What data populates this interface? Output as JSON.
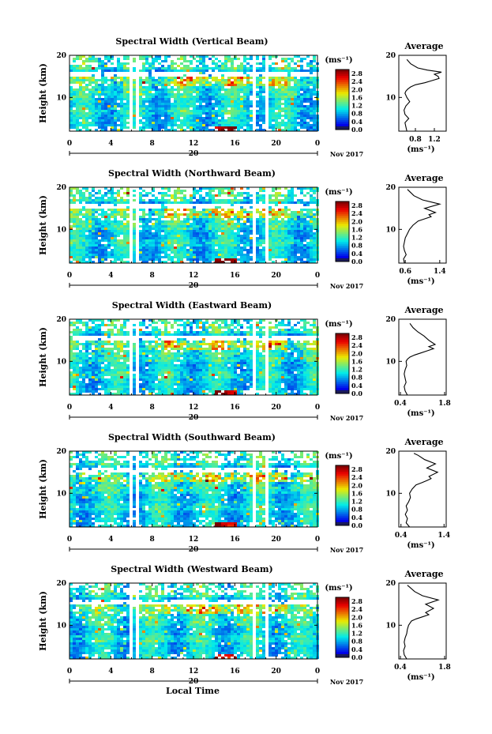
{
  "figure": {
    "xlabel": "Local Time",
    "date_label": "Nov 2017",
    "day_label": "20",
    "unit_label": "(ms⁻¹)",
    "avg_title": "Average",
    "avg_xlabel": "(ms⁻¹)"
  },
  "chart_data": [
    {
      "type": "heatmap",
      "title": "Spectral Width (Vertical Beam)",
      "xlabel": "Local Time",
      "ylabel": "Height (km)",
      "xlim": [
        0,
        24
      ],
      "ylim": [
        2,
        20
      ],
      "x_ticks": [
        "0",
        "4",
        "8",
        "12",
        "16",
        "20",
        "0"
      ],
      "y_ticks": [
        "10",
        "20"
      ],
      "colorbar": {
        "label": "(ms⁻¹)",
        "range": [
          0,
          3.0
        ],
        "ticks": [
          "0.0",
          "0.4",
          "0.8",
          "1.2",
          "1.6",
          "2.0",
          "2.4",
          "2.8"
        ]
      },
      "data_gaps_hours": [
        [
          5.8,
          6.0
        ],
        [
          6.3,
          6.6
        ],
        [
          17.6,
          17.8
        ],
        [
          18.8,
          19.2
        ],
        [
          20.5,
          20.7
        ]
      ],
      "colors": {
        "low": "#1d3fc8",
        "high": "#d81a1a"
      }
    },
    {
      "type": "line",
      "title": "Average",
      "xlabel": "(ms⁻¹)",
      "ylabel": "Height (km)",
      "xlim": [
        0.45,
        1.45
      ],
      "ylim": [
        2,
        20
      ],
      "x_ticks": [
        "0.8",
        "1.2"
      ],
      "y_ticks": [
        "10",
        "20"
      ],
      "x": [
        0.62,
        0.6,
        0.58,
        0.66,
        0.58,
        0.56,
        0.6,
        0.68,
        0.62,
        0.58,
        0.6,
        0.64,
        0.7,
        0.8,
        1.0,
        1.15,
        1.3,
        1.28,
        1.2,
        1.35,
        1.05,
        0.85,
        0.7,
        0.62
      ],
      "y": [
        2,
        3,
        4,
        5,
        6,
        7,
        8,
        9,
        10,
        11,
        11.5,
        12,
        12.5,
        13,
        13.5,
        14,
        14.5,
        15,
        15.5,
        16,
        16.5,
        17,
        18,
        19
      ]
    },
    {
      "type": "heatmap",
      "title": "Spectral Width (Northward Beam)",
      "xlabel": "Local Time",
      "ylabel": "Height (km)",
      "xlim": [
        0,
        24
      ],
      "ylim": [
        2,
        20
      ],
      "x_ticks": [
        "0",
        "4",
        "8",
        "12",
        "16",
        "20",
        "0"
      ],
      "y_ticks": [
        "10",
        "20"
      ],
      "colorbar": {
        "label": "(ms⁻¹)",
        "range": [
          0,
          3.0
        ],
        "ticks": [
          "0.0",
          "0.4",
          "0.8",
          "1.2",
          "1.6",
          "2.0",
          "2.4",
          "2.8"
        ]
      },
      "data_gaps_hours": [
        [
          5.8,
          6.0
        ],
        [
          6.3,
          6.6
        ],
        [
          17.6,
          17.8
        ],
        [
          18.8,
          19.2
        ],
        [
          20.5,
          20.7
        ]
      ],
      "colors": {
        "low": "#1d3fc8",
        "high": "#d81a1a"
      }
    },
    {
      "type": "line",
      "title": "Average",
      "xlabel": "(ms⁻¹)",
      "ylabel": "Height (km)",
      "xlim": [
        0.45,
        1.55
      ],
      "ylim": [
        2,
        20
      ],
      "x_ticks": [
        "0.6",
        "1.4"
      ],
      "y_ticks": [
        "10",
        "20"
      ],
      "x": [
        0.58,
        0.56,
        0.62,
        0.58,
        0.56,
        0.58,
        0.6,
        0.65,
        0.7,
        0.78,
        0.9,
        1.05,
        1.2,
        1.15,
        1.3,
        1.05,
        1.4,
        1.0,
        0.8,
        0.7,
        0.65
      ],
      "y": [
        2,
        3,
        4,
        5,
        6,
        7,
        8,
        9,
        10,
        11,
        12,
        12.5,
        13,
        13.5,
        14,
        15,
        16,
        17,
        18,
        19,
        19.5
      ]
    },
    {
      "type": "heatmap",
      "title": "Spectral Width (Eastward Beam)",
      "xlabel": "Local Time",
      "ylabel": "Height (km)",
      "xlim": [
        0,
        24
      ],
      "ylim": [
        2,
        20
      ],
      "x_ticks": [
        "0",
        "4",
        "8",
        "12",
        "16",
        "20",
        "0"
      ],
      "y_ticks": [
        "10",
        "20"
      ],
      "colorbar": {
        "label": "(ms⁻¹)",
        "range": [
          0,
          3.0
        ],
        "ticks": [
          "0.0",
          "0.4",
          "0.8",
          "1.2",
          "1.6",
          "2.0",
          "2.4",
          "2.8"
        ]
      },
      "data_gaps_hours": [
        [
          5.8,
          6.0
        ],
        [
          6.3,
          6.6
        ],
        [
          17.6,
          17.8
        ],
        [
          18.8,
          19.2
        ],
        [
          20.5,
          20.7
        ]
      ],
      "colors": {
        "low": "#1d3fc8",
        "high": "#d81a1a"
      }
    },
    {
      "type": "line",
      "title": "Average",
      "xlabel": "(ms⁻¹)",
      "ylabel": "Height (km)",
      "xlim": [
        0.35,
        1.85
      ],
      "ylim": [
        2,
        20
      ],
      "x_ticks": [
        "0.4",
        "1.8"
      ],
      "y_ticks": [
        "10",
        "20"
      ],
      "x": [
        0.62,
        0.55,
        0.52,
        0.58,
        0.55,
        0.52,
        0.55,
        0.6,
        0.58,
        0.62,
        0.7,
        0.85,
        1.05,
        1.25,
        1.45,
        1.3,
        1.5,
        1.3,
        1.15,
        0.95,
        0.8,
        0.7
      ],
      "y": [
        2,
        3,
        4,
        5,
        6,
        7,
        8,
        9,
        10,
        10.5,
        11,
        11.5,
        12,
        12.5,
        13,
        13.5,
        14,
        15,
        16,
        17,
        18,
        19
      ]
    },
    {
      "type": "heatmap",
      "title": "Spectral Width (Southward Beam)",
      "xlabel": "Local Time",
      "ylabel": "Height (km)",
      "xlim": [
        0,
        24
      ],
      "ylim": [
        2,
        20
      ],
      "x_ticks": [
        "0",
        "4",
        "8",
        "12",
        "16",
        "20",
        "0"
      ],
      "y_ticks": [
        "10",
        "20"
      ],
      "colorbar": {
        "label": "(ms⁻¹)",
        "range": [
          0,
          3.0
        ],
        "ticks": [
          "0.0",
          "0.4",
          "0.8",
          "1.2",
          "1.6",
          "2.0",
          "2.4",
          "2.8"
        ]
      },
      "data_gaps_hours": [
        [
          5.8,
          6.0
        ],
        [
          6.3,
          6.6
        ],
        [
          17.6,
          17.8
        ],
        [
          18.8,
          19.2
        ],
        [
          20.5,
          20.7
        ]
      ],
      "colors": {
        "low": "#1d3fc8",
        "high": "#d81a1a"
      }
    },
    {
      "type": "line",
      "title": "Average",
      "xlabel": "(ms⁻¹)",
      "ylabel": "Height (km)",
      "xlim": [
        0.35,
        1.45
      ],
      "ylim": [
        2,
        20
      ],
      "x_ticks": [
        "0.4",
        "1.4"
      ],
      "y_ticks": [
        "10",
        "20"
      ],
      "x": [
        0.6,
        0.52,
        0.55,
        0.5,
        0.55,
        0.52,
        0.58,
        0.62,
        0.6,
        0.66,
        0.75,
        0.88,
        1.0,
        1.1,
        1.05,
        1.25,
        1.0,
        1.2,
        0.95,
        0.8,
        0.7
      ],
      "y": [
        2,
        3,
        4,
        5,
        6,
        7,
        8,
        9,
        10,
        11,
        12,
        12.5,
        13,
        13.5,
        14,
        15,
        16,
        17,
        18,
        19,
        19.5
      ]
    },
    {
      "type": "heatmap",
      "title": "Spectral Width (Westward Beam)",
      "xlabel": "Local Time",
      "ylabel": "Height (km)",
      "xlim": [
        0,
        24
      ],
      "ylim": [
        2,
        20
      ],
      "x_ticks": [
        "0",
        "4",
        "8",
        "12",
        "16",
        "20",
        "0"
      ],
      "y_ticks": [
        "10",
        "20"
      ],
      "colorbar": {
        "label": "(ms⁻¹)",
        "range": [
          0,
          3.0
        ],
        "ticks": [
          "0.0",
          "0.4",
          "0.8",
          "1.2",
          "1.6",
          "2.0",
          "2.4",
          "2.8"
        ]
      },
      "data_gaps_hours": [
        [
          5.8,
          6.0
        ],
        [
          6.3,
          6.6
        ],
        [
          17.6,
          17.8
        ],
        [
          18.8,
          19.2
        ],
        [
          20.5,
          20.7
        ]
      ],
      "colors": {
        "low": "#1d3fc8",
        "high": "#d81a1a"
      }
    },
    {
      "type": "line",
      "title": "Average",
      "xlabel": "(ms⁻¹)",
      "ylabel": "Height (km)",
      "xlim": [
        0.35,
        1.85
      ],
      "ylim": [
        2,
        20
      ],
      "x_ticks": [
        "0.4",
        "1.8"
      ],
      "y_ticks": [
        "10",
        "20"
      ],
      "x": [
        0.6,
        0.52,
        0.5,
        0.55,
        0.52,
        0.55,
        0.6,
        0.62,
        0.66,
        0.75,
        0.9,
        1.1,
        1.3,
        1.2,
        1.45,
        1.2,
        1.6,
        1.1,
        0.85,
        0.7,
        0.62
      ],
      "y": [
        2,
        3,
        4,
        5,
        6,
        7,
        8,
        9,
        10,
        11,
        11.5,
        12,
        12.5,
        13,
        14,
        15,
        16,
        17,
        18,
        19,
        19.5
      ]
    }
  ]
}
